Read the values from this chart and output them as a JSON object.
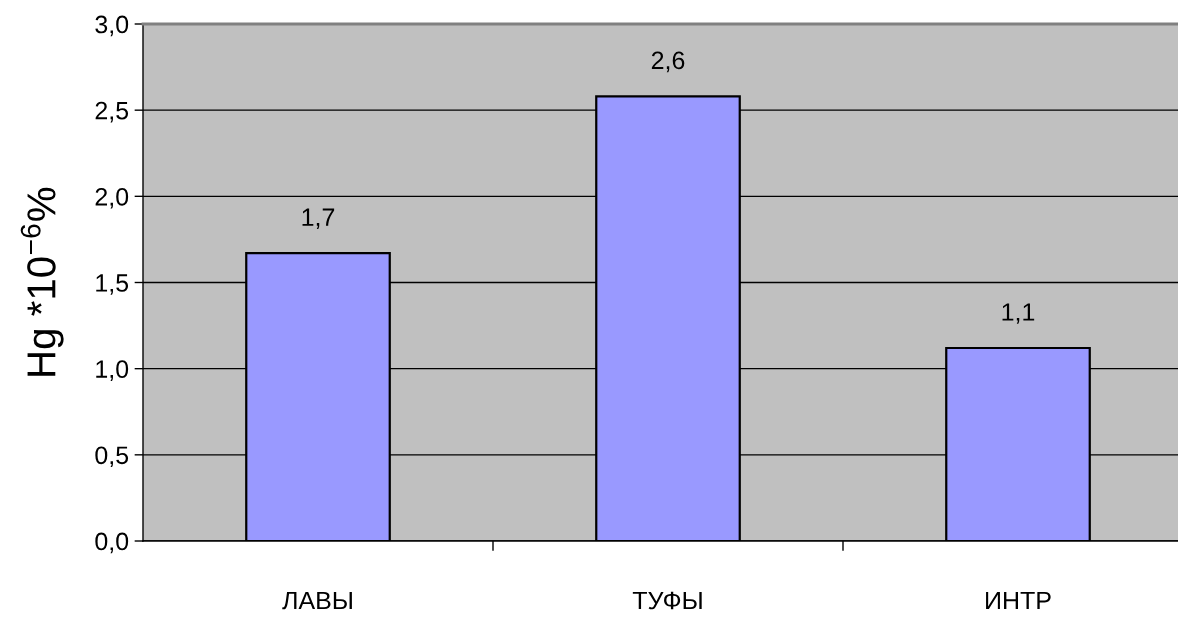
{
  "chart_data": {
    "type": "bar",
    "ylabel": "Hg *10$^{−6}$%",
    "categories": [
      "ЛАВЫ",
      "ТУФЫ",
      "ИНТР"
    ],
    "values": [
      1.67,
      2.58,
      1.12
    ],
    "color": "#9999ff",
    "value_labels": [
      "1,7",
      "2,6",
      "1,1"
    ],
    "ylim": [
      0,
      3
    ],
    "yticks": [
      {
        "value": 0,
        "label": "0,0"
      },
      {
        "value": 0.5,
        "label": "0,5"
      },
      {
        "value": 1,
        "label": "1,0"
      },
      {
        "value": 1.5,
        "label": "1,5"
      },
      {
        "value": 2,
        "label": "2,0"
      },
      {
        "value": 2.5,
        "label": "2,5"
      },
      {
        "value": 3,
        "label": "3,0"
      }
    ],
    "grid": "y"
  }
}
